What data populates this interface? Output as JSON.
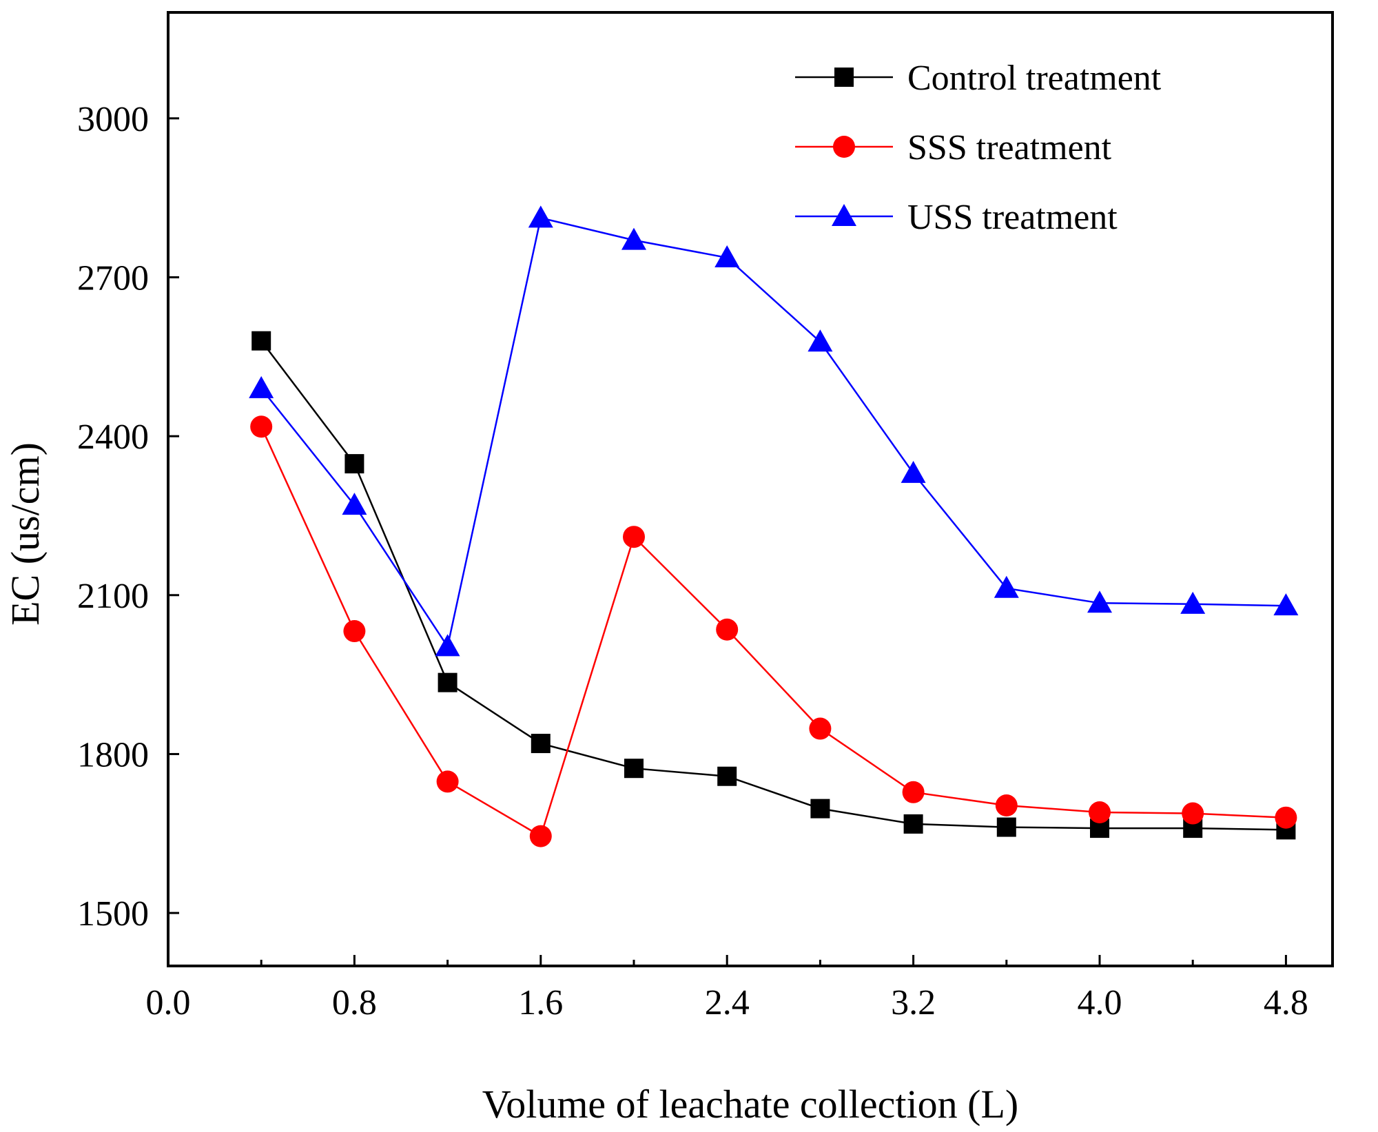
{
  "chart_data": {
    "type": "line",
    "title": "",
    "xlabel": "Volume of leachate collection (L)",
    "ylabel": "EC (us/cm)",
    "xlim": [
      0.0,
      5.0
    ],
    "ylim": [
      1400,
      3200
    ],
    "x_ticks": [
      "0.0",
      "0.8",
      "1.6",
      "2.4",
      "3.2",
      "4.0",
      "4.8"
    ],
    "x_tick_values": [
      0.0,
      0.8,
      1.6,
      2.4,
      3.2,
      4.0,
      4.8
    ],
    "x_minor_ticks": [
      0.4,
      1.2,
      2.0,
      2.8,
      3.6,
      4.4
    ],
    "y_ticks": [
      "1500",
      "1800",
      "2100",
      "2400",
      "2700",
      "3000"
    ],
    "y_tick_values": [
      1500,
      1800,
      2100,
      2400,
      2700,
      3000
    ],
    "legend_position": "top-right",
    "x": [
      0.4,
      0.8,
      1.2,
      1.6,
      2.0,
      2.4,
      2.8,
      3.2,
      3.6,
      4.0,
      4.4,
      4.8
    ],
    "series": [
      {
        "name": "Control treatment",
        "color": "#000000",
        "marker": "square",
        "values": [
          2580,
          2348,
          1935,
          1820,
          1773,
          1758,
          1697,
          1668,
          1662,
          1660,
          1660,
          1657
        ]
      },
      {
        "name": "SSS treatment",
        "color": "#ff0000",
        "marker": "circle",
        "values": [
          2418,
          2032,
          1748,
          1645,
          2210,
          2035,
          1848,
          1728,
          1703,
          1690,
          1688,
          1680
        ]
      },
      {
        "name": "USS treatment",
        "color": "#0000ff",
        "marker": "triangle",
        "values": [
          2490,
          2270,
          2003,
          2812,
          2770,
          2737,
          2578,
          2330,
          2113,
          2085,
          2083,
          2080
        ]
      }
    ]
  }
}
